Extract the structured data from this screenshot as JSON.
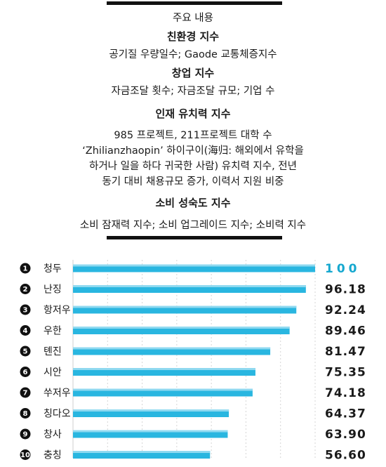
{
  "info": {
    "heading": "주요 내용",
    "sections": [
      {
        "title": "친환경 지수",
        "lines": [
          "공기질 우량일수; Gaode 교통체증지수"
        ]
      },
      {
        "title": "창업 지수",
        "lines": [
          "자금조달 횟수; 자금조달 규모; 기업 수"
        ]
      },
      {
        "title": "인재 유치력 지수",
        "lines": [
          "985 프로젝트, 211프로젝트 대학 수",
          "‘Zhilianzhaopin’ 하이구이(海归: 해외에서 유학을",
          "하거나 일을 하다 귀국한 사람) 유치력 지수, 전년",
          "동기 대비 채용규모 증가, 이력서 지원 비중"
        ]
      },
      {
        "title": "소비 성숙도 지수",
        "lines": [
          "소비 잠재력 지수; 소비 업그레이드 지수; 소비력 지수"
        ]
      }
    ]
  },
  "colors": {
    "bar": "#29b6e0",
    "bar_light": "#8fd9f0",
    "top_value": "#16a8cf",
    "rule": "#111111"
  },
  "chart_data": {
    "type": "bar",
    "orientation": "horizontal",
    "categories": [
      "청두",
      "난징",
      "항저우",
      "우한",
      "톈진",
      "시안",
      "쑤저우",
      "칭다오",
      "창사",
      "충칭"
    ],
    "ranks": [
      "1",
      "2",
      "3",
      "4",
      "5",
      "6",
      "7",
      "8",
      "9",
      "10"
    ],
    "values": [
      100,
      96.18,
      92.24,
      89.46,
      81.47,
      75.35,
      74.18,
      64.37,
      63.9,
      56.6
    ],
    "value_labels": [
      "100",
      "96.18",
      "92.24",
      "89.46",
      "81.47",
      "75.35",
      "74.18",
      "64.37",
      "63.90",
      "56.60"
    ],
    "xlim": [
      0,
      100
    ],
    "grid": true
  }
}
